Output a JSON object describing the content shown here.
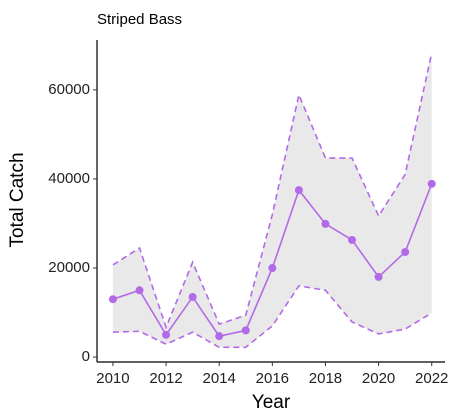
{
  "chart_data": {
    "type": "line",
    "title": "Striped Bass",
    "xlabel": "Year",
    "ylabel": "Total Catch",
    "x": [
      2010,
      2011,
      2012,
      2013,
      2014,
      2015,
      2016,
      2017,
      2018,
      2019,
      2020,
      2021,
      2022
    ],
    "values": [
      13000,
      15000,
      5000,
      13500,
      4700,
      6000,
      20000,
      37500,
      29900,
      26300,
      18000,
      23600,
      38900
    ],
    "upper": [
      20700,
      24500,
      6700,
      21300,
      7400,
      9400,
      32000,
      58900,
      44700,
      44700,
      31700,
      41000,
      68300
    ],
    "lower": [
      5600,
      5800,
      2900,
      5600,
      2200,
      2200,
      7000,
      16000,
      15000,
      7900,
      5200,
      6300,
      9900
    ],
    "color": "#b36ae8",
    "band_color": "#e9e9e9",
    "xlim": [
      2009.4,
      2022.5
    ],
    "ylim": [
      -1100,
      71200
    ],
    "xticks": [
      2010,
      2012,
      2014,
      2016,
      2018,
      2020,
      2022
    ],
    "yticks": [
      0,
      20000,
      40000,
      60000
    ]
  }
}
